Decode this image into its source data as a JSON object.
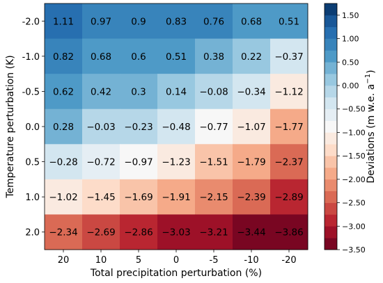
{
  "chart_data": {
    "type": "heatmap",
    "title": "",
    "xlabel": "Total precipitation perturbation (%)",
    "ylabel": "Temperature perturbation (K)",
    "x_categories": [
      "20",
      "10",
      "5",
      "0",
      "-5",
      "-10",
      "-20"
    ],
    "y_categories": [
      "-2.0",
      "-1.0",
      "-0.5",
      "0.0",
      "0.5",
      "1.0",
      "2.0"
    ],
    "values": [
      [
        1.11,
        0.97,
        0.9,
        0.83,
        0.76,
        0.68,
        0.51
      ],
      [
        0.82,
        0.68,
        0.6,
        0.51,
        0.38,
        0.22,
        -0.37
      ],
      [
        0.62,
        0.42,
        0.3,
        0.14,
        -0.08,
        -0.34,
        -1.12
      ],
      [
        0.28,
        -0.03,
        -0.23,
        -0.48,
        -0.77,
        -1.07,
        -1.77
      ],
      [
        -0.28,
        -0.72,
        -0.97,
        -1.23,
        -1.51,
        -1.79,
        -2.37
      ],
      [
        -1.02,
        -1.45,
        -1.69,
        -1.91,
        -2.15,
        -2.39,
        -2.89
      ],
      [
        -2.34,
        -2.69,
        -2.86,
        -3.03,
        -3.21,
        -3.44,
        -3.86
      ]
    ],
    "cell_labels": [
      [
        "1.11",
        "0.97",
        "0.9",
        "0.83",
        "0.76",
        "0.68",
        "0.51"
      ],
      [
        "0.82",
        "0.68",
        "0.6",
        "0.51",
        "0.38",
        "0.22",
        "−0.37"
      ],
      [
        "0.62",
        "0.42",
        "0.3",
        "0.14",
        "−0.08",
        "−0.34",
        "−1.12"
      ],
      [
        "0.28",
        "−0.03",
        "−0.23",
        "−0.48",
        "−0.77",
        "−1.07",
        "−1.77"
      ],
      [
        "−0.28",
        "−0.72",
        "−0.97",
        "−1.23",
        "−1.51",
        "−1.79",
        "−2.37"
      ],
      [
        "−1.02",
        "−1.45",
        "−1.69",
        "−1.91",
        "−2.15",
        "−2.39",
        "−2.89"
      ],
      [
        "−2.34",
        "−2.69",
        "−2.86",
        "−3.03",
        "−3.21",
        "−3.44",
        "−3.86"
      ]
    ],
    "colorbar": {
      "label": "Deviations (m w.e. a",
      "label_sup": "−1",
      "label_close": ")",
      "colormap": "RdBu (discrete, 21 levels)",
      "range": [
        -3.5,
        1.75
      ],
      "step": 0.25,
      "ticks": [
        1.5,
        1.0,
        0.5,
        0.0,
        -0.5,
        -1.0,
        -1.5,
        -2.0,
        -2.5,
        -3.0,
        -3.5
      ],
      "tick_labels": [
        "1.50",
        "1.00",
        "0.50",
        "0.00",
        "−0.50",
        "−1.00",
        "−1.50",
        "−2.00",
        "−2.50",
        "−3.00",
        "−3.50"
      ]
    },
    "grid": false
  }
}
